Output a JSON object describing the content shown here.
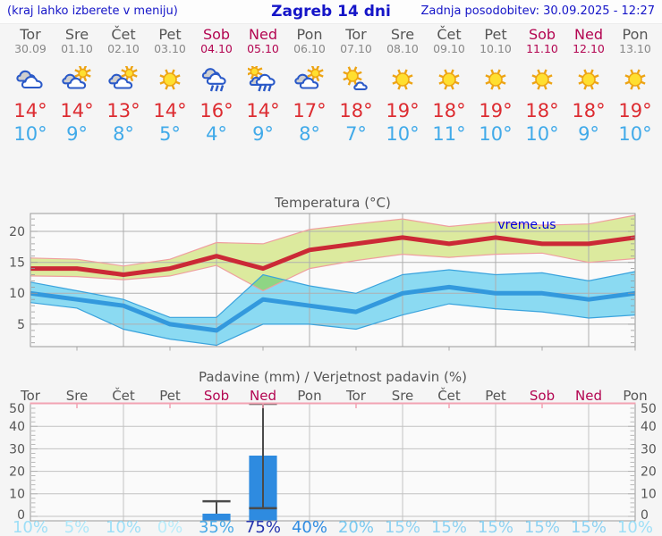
{
  "header": {
    "note": "(kraj lahko izberete v meniju)",
    "title": "Zagreb 14 dni",
    "updated": "Zadnja posodobitev: 30.09.2025 - 12:27"
  },
  "watermark": "vreme.us",
  "colors": {
    "link_blue": "#1515c8",
    "weekend": "#b30551",
    "weekday": "#555555",
    "temp_max": "#dd2c31",
    "temp_min": "#41aae9",
    "max_line": "#cb2936",
    "max_band": "#dcea9e",
    "max_band_edge": "#ef9f9f",
    "min_line": "#3399dd",
    "min_band": "#8bdaf2",
    "min_band_edge": "#3aa3dd",
    "band_overlap": "#8ed584",
    "bar_fill": "#2e8be0",
    "prob_scale": {
      "0": "#b9ecfa",
      "5": "#aee7f9",
      "10": "#9edff7",
      "15": "#8ed2f2",
      "20": "#79c9f0",
      "35": "#47a9e8",
      "40": "#2f8ce2",
      "75": "#2433ae"
    }
  },
  "days": [
    {
      "name": "Tor",
      "date": "30.09",
      "weekend": false,
      "icon": "cloudy",
      "tmax": 14,
      "tmin": 10,
      "prob": 10
    },
    {
      "name": "Sre",
      "date": "01.10",
      "weekend": false,
      "icon": "partly-sunny",
      "tmax": 14,
      "tmin": 9,
      "prob": 5
    },
    {
      "name": "Čet",
      "date": "02.10",
      "weekend": false,
      "icon": "partly-sunny",
      "tmax": 13,
      "tmin": 8,
      "prob": 10
    },
    {
      "name": "Pet",
      "date": "03.10",
      "weekend": false,
      "icon": "sunny",
      "tmax": 14,
      "tmin": 5,
      "prob": 0
    },
    {
      "name": "Sob",
      "date": "04.10",
      "weekend": true,
      "icon": "rain",
      "tmax": 16,
      "tmin": 4,
      "prob": 35
    },
    {
      "name": "Ned",
      "date": "05.10",
      "weekend": true,
      "icon": "sun-rain",
      "tmax": 14,
      "tmin": 9,
      "prob": 75
    },
    {
      "name": "Pon",
      "date": "06.10",
      "weekend": false,
      "icon": "partly-sunny",
      "tmax": 17,
      "tmin": 8,
      "prob": 40
    },
    {
      "name": "Tor",
      "date": "07.10",
      "weekend": false,
      "icon": "mostly-sunny",
      "tmax": 18,
      "tmin": 7,
      "prob": 20
    },
    {
      "name": "Sre",
      "date": "08.10",
      "weekend": false,
      "icon": "sunny",
      "tmax": 19,
      "tmin": 10,
      "prob": 15
    },
    {
      "name": "Čet",
      "date": "09.10",
      "weekend": false,
      "icon": "sunny",
      "tmax": 18,
      "tmin": 11,
      "prob": 15
    },
    {
      "name": "Pet",
      "date": "10.10",
      "weekend": false,
      "icon": "sunny",
      "tmax": 19,
      "tmin": 10,
      "prob": 15
    },
    {
      "name": "Sob",
      "date": "11.10",
      "weekend": true,
      "icon": "sunny",
      "tmax": 18,
      "tmin": 10,
      "prob": 15
    },
    {
      "name": "Ned",
      "date": "12.10",
      "weekend": true,
      "icon": "sunny",
      "tmax": 18,
      "tmin": 9,
      "prob": 15
    },
    {
      "name": "Pon",
      "date": "13.10",
      "weekend": false,
      "icon": "sunny",
      "tmax": 19,
      "tmin": 10,
      "prob": 10
    }
  ],
  "chart_data": [
    {
      "type": "line",
      "title": "Temperatura (°C)",
      "ylim": [
        1.4,
        22.9
      ],
      "yticks": [
        5,
        10,
        15,
        20
      ],
      "x_days": [
        "Tor 30.09",
        "Sre 01.10",
        "Čet 02.10",
        "Pet 03.10",
        "Sob 04.10",
        "Ned 05.10",
        "Pon 06.10",
        "Tor 07.10",
        "Sre 08.10",
        "Čet 09.10",
        "Pet 10.10",
        "Sob 11.10",
        "Ned 12.10",
        "Pon 13.10"
      ],
      "series": [
        {
          "name": "max_temp",
          "values": [
            14,
            14,
            13,
            14,
            16,
            14,
            17,
            18,
            19,
            18,
            19,
            18,
            18,
            19
          ]
        },
        {
          "name": "min_temp",
          "values": [
            10,
            9,
            8,
            5,
            4,
            9,
            8,
            7,
            10,
            11,
            10,
            10,
            9,
            10
          ]
        },
        {
          "name": "max_range_upper",
          "values": [
            15.7,
            15.5,
            14.4,
            15.5,
            18.2,
            18.0,
            20.3,
            21.2,
            22.0,
            20.8,
            21.5,
            21.0,
            21.2,
            22.6
          ]
        },
        {
          "name": "max_range_lower",
          "values": [
            12.8,
            12.7,
            12.2,
            12.8,
            14.5,
            10.4,
            14.0,
            15.3,
            16.3,
            15.8,
            16.3,
            16.5,
            15.0,
            15.6
          ]
        },
        {
          "name": "min_range_upper",
          "values": [
            11.8,
            10.4,
            9.0,
            6.1,
            6.1,
            13.0,
            11.2,
            10.0,
            13.0,
            13.8,
            13.0,
            13.3,
            12.0,
            13.5
          ]
        },
        {
          "name": "min_range_lower",
          "values": [
            8.5,
            7.6,
            4.2,
            2.6,
            1.6,
            5.0,
            5.0,
            4.2,
            6.5,
            8.3,
            7.5,
            7.0,
            6.0,
            6.5
          ]
        }
      ],
      "legend": "none",
      "grid": true
    },
    {
      "type": "bar",
      "title": "Padavine (mm) / Verjetnost padavin (%)",
      "categories": [
        "Tor",
        "Sre",
        "Čet",
        "Pet",
        "Sob",
        "Ned",
        "Pon",
        "Tor",
        "Sre",
        "Čet",
        "Pet",
        "Sob",
        "Ned",
        "Pon"
      ],
      "weekend_flags": [
        false,
        false,
        false,
        false,
        true,
        true,
        false,
        false,
        false,
        false,
        false,
        true,
        true,
        false
      ],
      "values_mm": [
        0,
        0,
        0,
        0,
        1.2,
        27,
        0,
        0,
        0,
        0,
        0,
        0,
        0,
        0
      ],
      "whiskers_mm": [
        null,
        null,
        null,
        null,
        [
          1.2,
          6.7
        ],
        [
          3.6,
          52
        ],
        null,
        null,
        null,
        null,
        null,
        null,
        null,
        null
      ],
      "probability_pct": [
        10,
        5,
        10,
        0,
        35,
        75,
        40,
        20,
        15,
        15,
        15,
        15,
        15,
        10
      ],
      "ylim": [
        0,
        52
      ],
      "yticks": [
        0,
        10,
        20,
        30,
        40,
        50
      ],
      "grid": true
    }
  ]
}
